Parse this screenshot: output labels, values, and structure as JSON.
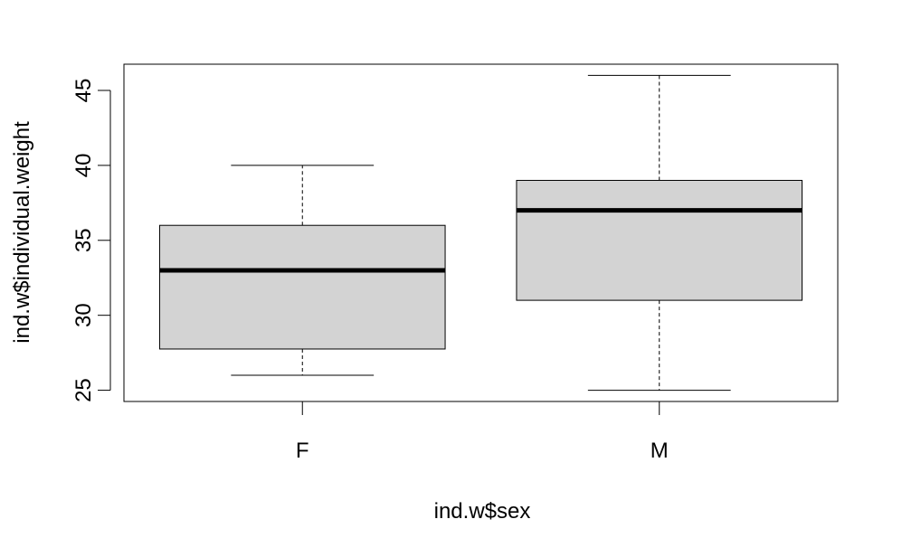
{
  "chart_data": {
    "type": "boxplot",
    "title": "",
    "xlabel": "ind.w$sex",
    "ylabel": "ind.w$individual.weight",
    "categories": [
      "F",
      "M"
    ],
    "boxes": [
      {
        "category": "F",
        "whisker_low": 26,
        "q1": 27.75,
        "median": 33,
        "q3": 36,
        "whisker_high": 40
      },
      {
        "category": "M",
        "whisker_low": 25,
        "q1": 31,
        "median": 37,
        "q3": 39,
        "whisker_high": 46
      }
    ],
    "ylim": [
      24.25,
      46.75
    ],
    "yticks": [
      25,
      30,
      35,
      40,
      45
    ],
    "box_fill": "#d3d3d3",
    "line_color": "#000000",
    "grid": false,
    "legend": "none"
  }
}
